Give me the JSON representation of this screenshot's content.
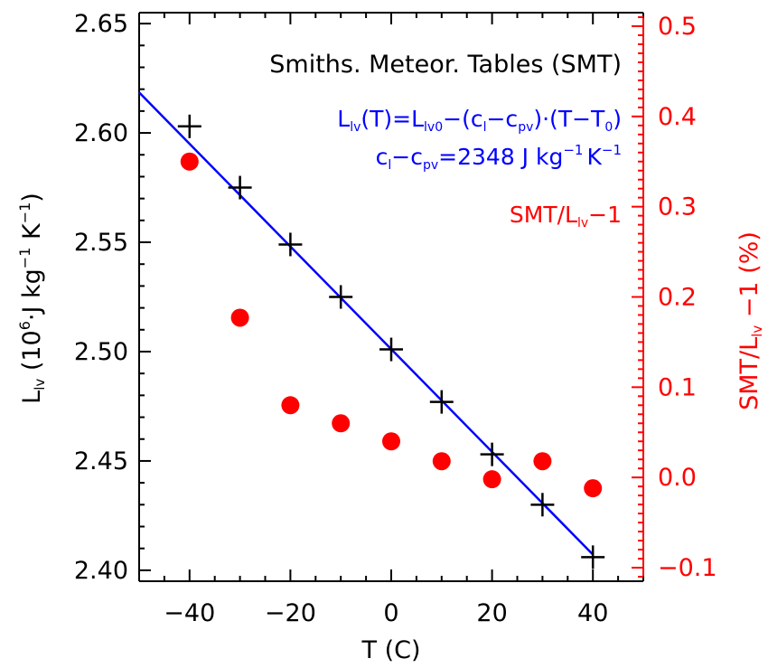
{
  "chart_data": {
    "type": "scatter",
    "title": "Smiths. Meteor. Tables (SMT)",
    "xlabel": "T (C)",
    "ylabel": "L_lv (10^6 J kg^-1 K^-1)",
    "y2label": "SMT/L_lv -1 (%)",
    "xlim": [
      -50,
      50
    ],
    "ylim": [
      2.395,
      2.655
    ],
    "y2lim": [
      -0.115,
      0.515
    ],
    "xticks": [
      -40,
      -20,
      0,
      20,
      40
    ],
    "xtick_labels": [
      "−40",
      "−20",
      "0",
      "20",
      "40"
    ],
    "yticks": [
      2.4,
      2.45,
      2.5,
      2.55,
      2.6,
      2.65
    ],
    "ytick_labels": [
      "2.40",
      "2.45",
      "2.50",
      "2.55",
      "2.60",
      "2.65"
    ],
    "y2ticks": [
      -0.1,
      0.0,
      0.1,
      0.2,
      0.3,
      0.4,
      0.5
    ],
    "y2tick_labels": [
      "−0.1",
      "0.0",
      "0.1",
      "0.2",
      "0.3",
      "0.4",
      "0.5"
    ],
    "grid": false,
    "colors": {
      "smt": "#000000",
      "fit": "#0000ff",
      "ratio": "#ff0000"
    },
    "series": [
      {
        "marker": "plus",
        "axis": "left",
        "x": [
          -40,
          -30,
          -20,
          -10,
          0,
          10,
          20,
          30,
          40
        ],
        "y": [
          2.603,
          2.575,
          2.549,
          2.525,
          2.501,
          2.477,
          2.453,
          2.43,
          2.406
        ]
      },
      {
        "marker": "line",
        "axis": "left",
        "x": [
          -50,
          40
        ],
        "y": [
          2.6185,
          2.4072
        ]
      },
      {
        "marker": "circle",
        "axis": "right",
        "x": [
          -40,
          -30,
          -20,
          -10,
          0,
          10,
          20,
          30,
          40
        ],
        "y": [
          0.35,
          0.177,
          0.08,
          0.06,
          0.04,
          0.018,
          -0.002,
          0.018,
          -0.012
        ]
      }
    ],
    "annotations": {
      "eq1": {
        "lhs": "L",
        "lhs_sub": "lv",
        "a": "(T)=L",
        "a_sub": "lv0",
        "b": "−(c",
        "b_sub": "l",
        "c": "−c",
        "c_sub": "pv",
        "d": ")·(T−T",
        "d_sub": "0",
        "e": ")"
      },
      "eq2": {
        "a": "c",
        "a_sub": "l",
        "b": "−c",
        "b_sub": "pv",
        "c": "=2348 J kg",
        "c_sup": "−1",
        "d": "K",
        "d_sup": "−1"
      },
      "ratio_label": {
        "a": "SMT/L",
        "a_sub": "lv",
        "b": "−1"
      }
    },
    "ylabel_parts": {
      "a": "L",
      "a_sub": "lv",
      "b": " (10",
      "b_sup": "6",
      "c": "·J kg",
      "c_sup": "−1",
      "d": " K",
      "d_sup": "−1",
      "e": ")"
    },
    "y2label_parts": {
      "a": "SMT/L",
      "a_sub": "lv",
      "b": " −1 (%)"
    }
  }
}
